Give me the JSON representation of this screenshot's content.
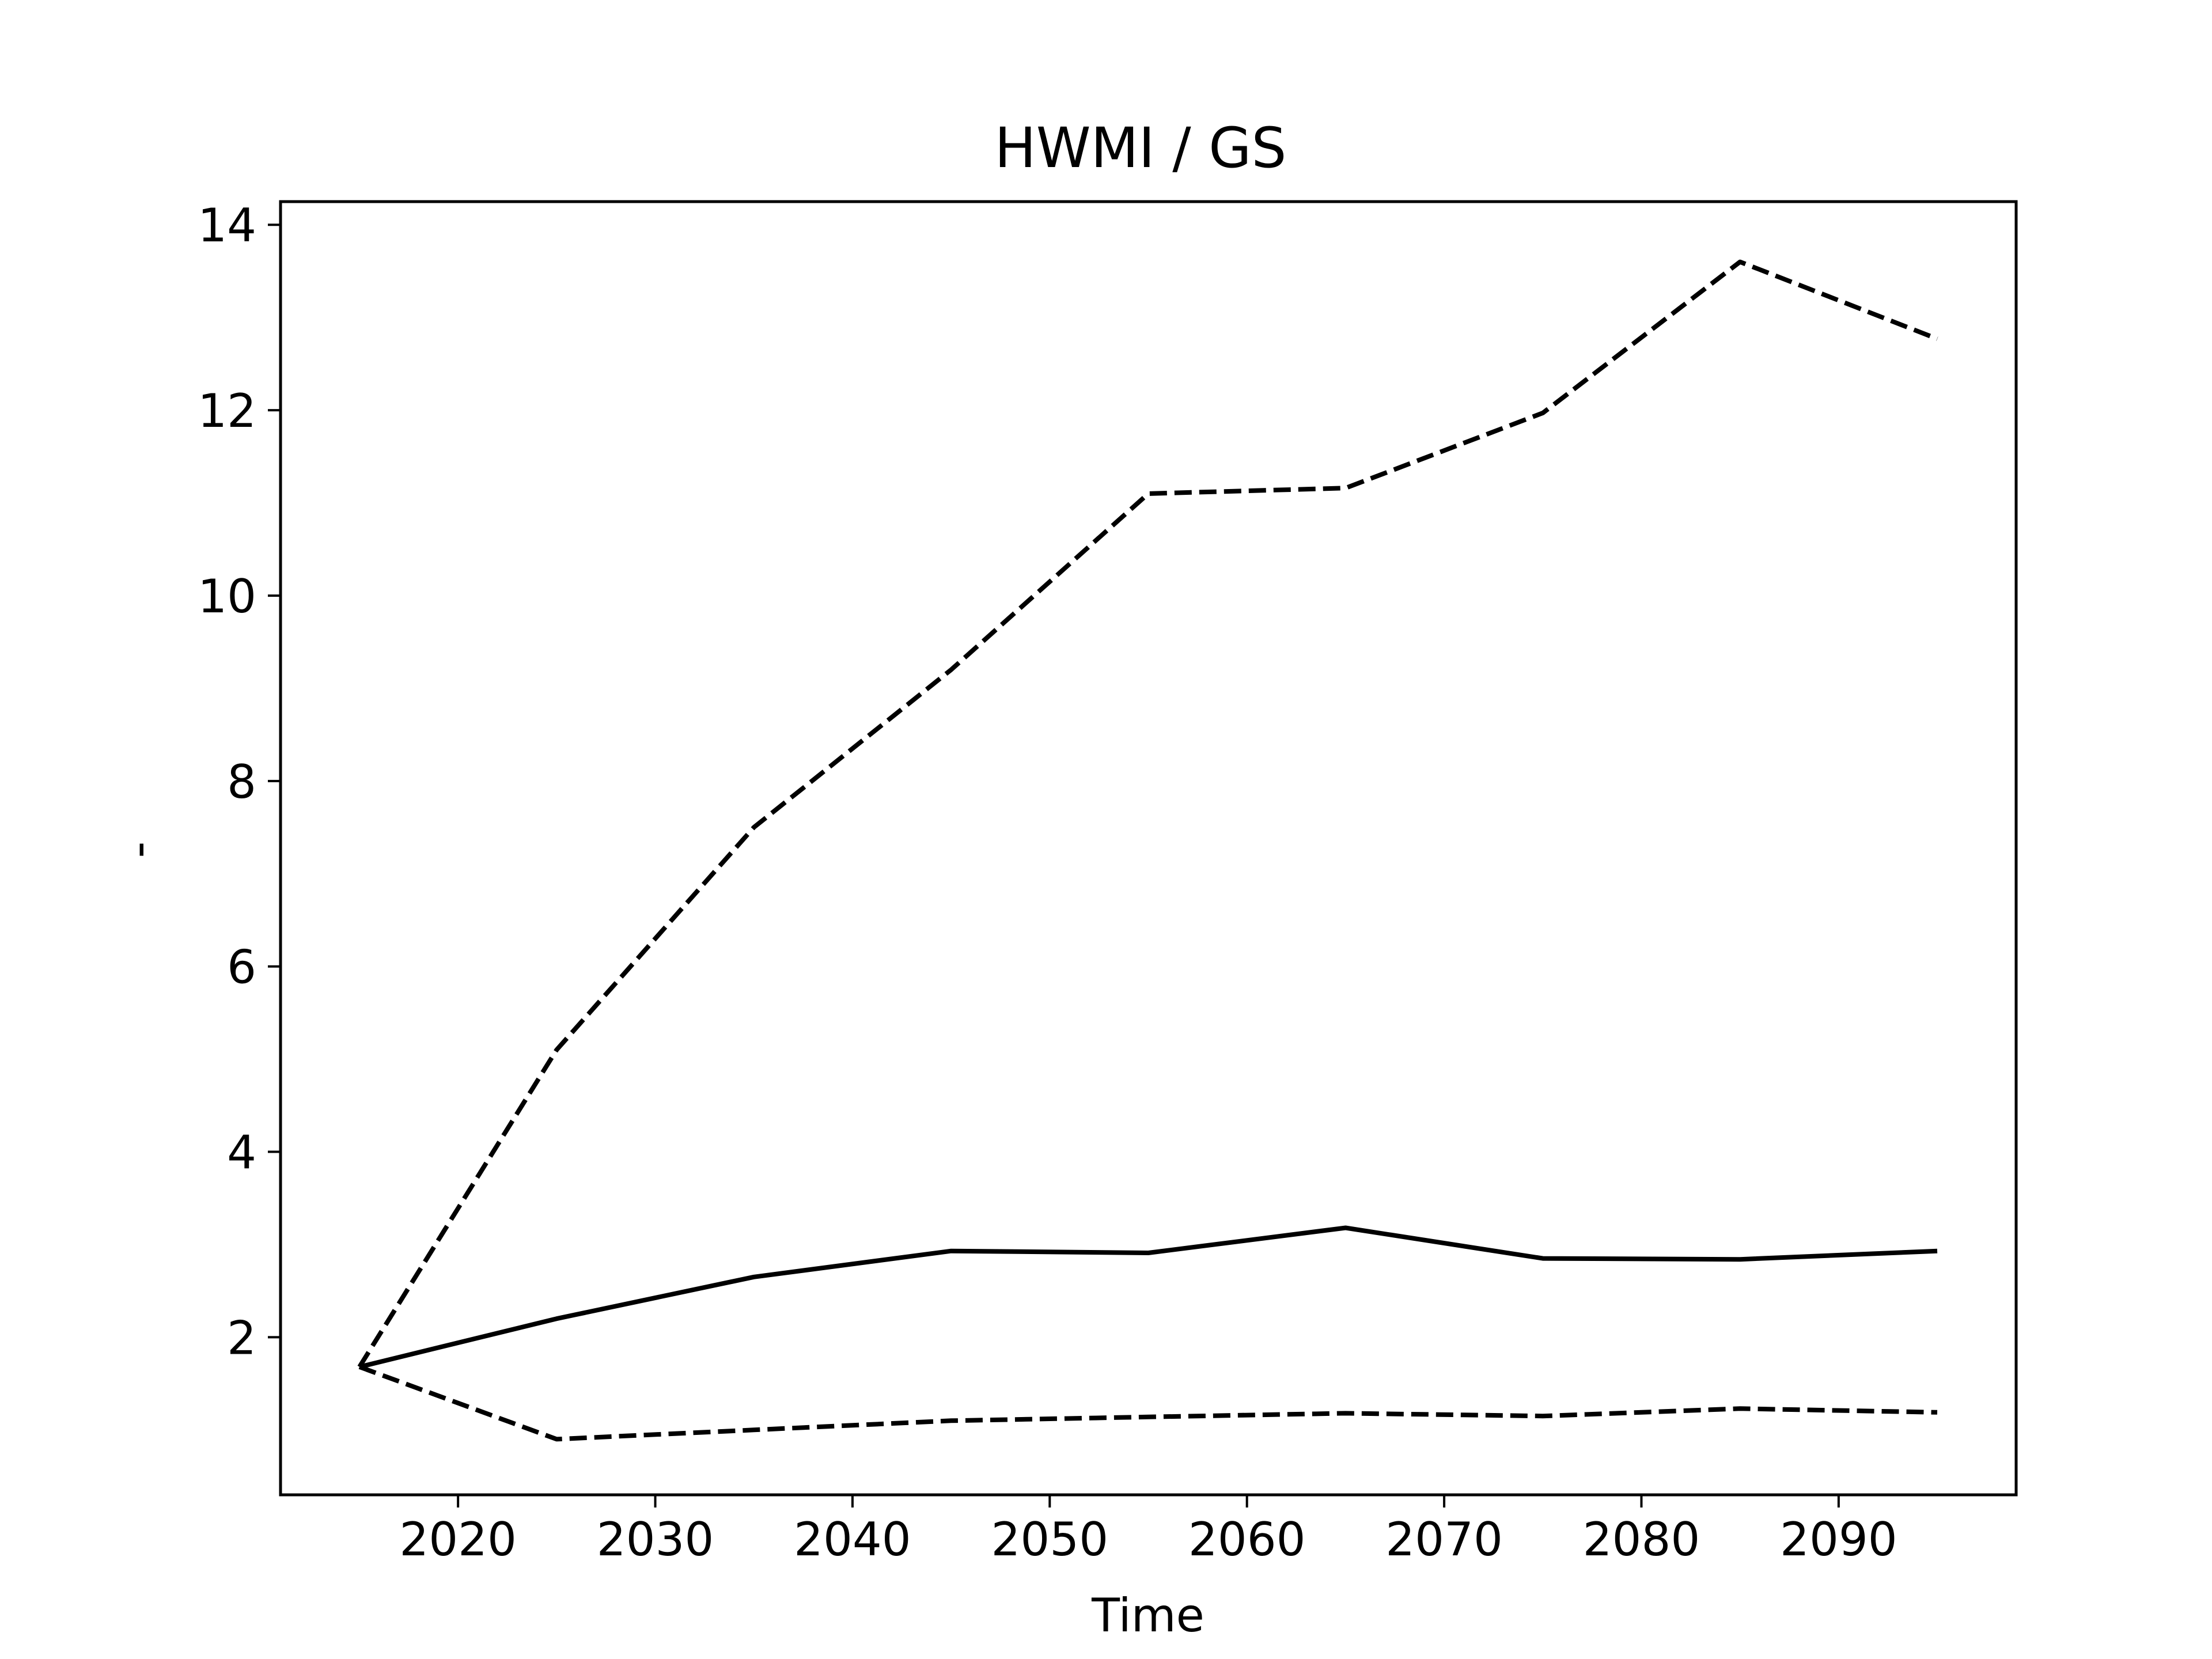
{
  "chart_data": {
    "type": "line",
    "title": "HWMI / GS",
    "xlabel": "Time",
    "ylabel": "-",
    "xlim": [
      2011,
      2099
    ],
    "ylim": [
      0.3,
      14.25
    ],
    "xticks": [
      2020,
      2030,
      2040,
      2050,
      2060,
      2070,
      2080,
      2090
    ],
    "yticks": [
      2,
      4,
      6,
      8,
      10,
      12,
      14
    ],
    "grid": false,
    "x": [
      2015,
      2025,
      2035,
      2045,
      2055,
      2065,
      2075,
      2085,
      2095
    ],
    "series": [
      {
        "values": [
          1.68,
          2.2,
          2.65,
          2.93,
          2.91,
          3.18,
          2.85,
          2.84,
          2.93
        ],
        "style": "solid",
        "color": "#000000"
      },
      {
        "values": [
          1.68,
          5.1,
          7.5,
          9.2,
          11.1,
          11.16,
          11.97,
          13.6,
          12.77
        ],
        "style": "dashed",
        "color": "#000000"
      },
      {
        "values": [
          1.68,
          0.9,
          1.0,
          1.1,
          1.14,
          1.18,
          1.15,
          1.23,
          1.19
        ],
        "style": "dashed",
        "color": "#000000"
      }
    ]
  }
}
